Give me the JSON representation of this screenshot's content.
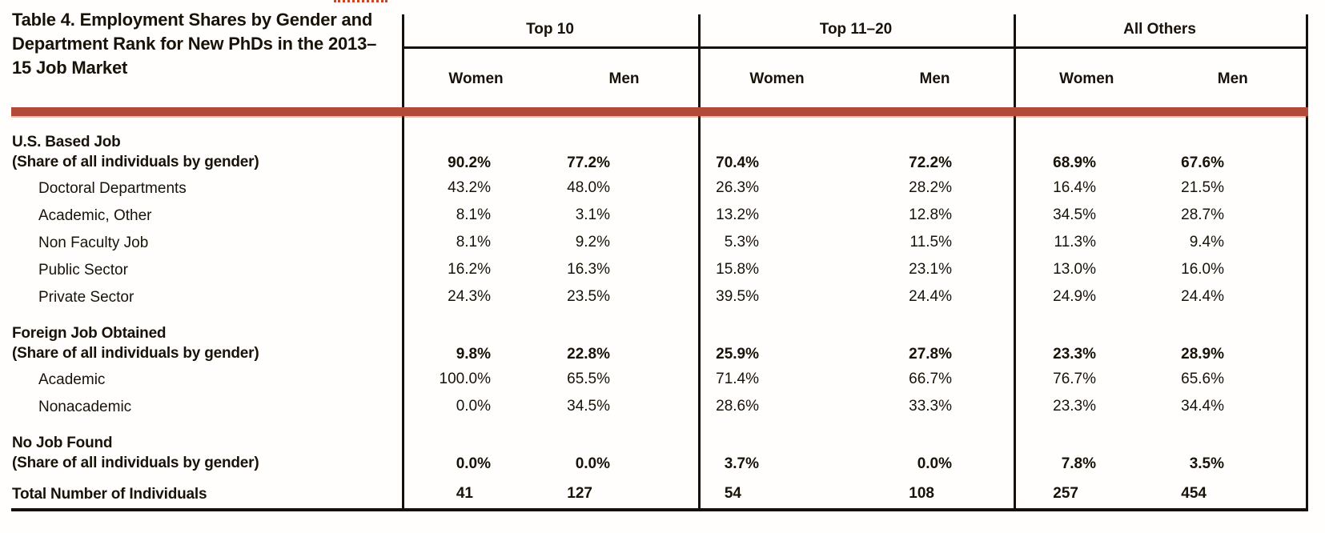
{
  "title": "Table 4. Employment Shares by Gender and Department Rank for New PhDs in the 2013–15 Job Market",
  "colors": {
    "accent_bar": "#b24a38",
    "dotted_rule": "#c5472b",
    "ink": "#15100b"
  },
  "table": {
    "groups": [
      {
        "label": "Top 10",
        "sub": [
          "Women",
          "Men"
        ]
      },
      {
        "label": "Top 11–20",
        "sub": [
          "Women",
          "Men"
        ]
      },
      {
        "label": "All Others",
        "sub": [
          "Women",
          "Men"
        ]
      }
    ],
    "rows": [
      {
        "label": "U.S. Based Job",
        "sublabel": "(Share of all individuals by gender)",
        "style": "group2",
        "bold_values": true,
        "values": [
          "90.2%",
          "77.2%",
          "70.4%",
          "72.2%",
          "68.9%",
          "67.6%"
        ]
      },
      {
        "label": "Doctoral Departments",
        "style": "single",
        "bold_values": false,
        "values": [
          "43.2%",
          "48.0%",
          "26.3%",
          "28.2%",
          "16.4%",
          "21.5%"
        ]
      },
      {
        "label": "Academic, Other",
        "style": "single",
        "bold_values": false,
        "values": [
          "8.1%",
          "3.1%",
          "13.2%",
          "12.8%",
          "34.5%",
          "28.7%"
        ]
      },
      {
        "label": "Non Faculty Job",
        "style": "single",
        "bold_values": false,
        "values": [
          "8.1%",
          "9.2%",
          "5.3%",
          "11.5%",
          "11.3%",
          "9.4%"
        ]
      },
      {
        "label": "Public Sector",
        "style": "single",
        "bold_values": false,
        "values": [
          "16.2%",
          "16.3%",
          "15.8%",
          "23.1%",
          "13.0%",
          "16.0%"
        ]
      },
      {
        "label": "Private Sector",
        "style": "single",
        "bold_values": false,
        "values": [
          "24.3%",
          "23.5%",
          "39.5%",
          "24.4%",
          "24.9%",
          "24.4%"
        ]
      },
      {
        "label": "Foreign Job Obtained",
        "sublabel": "(Share of all individuals by gender)",
        "style": "group2",
        "bold_values": true,
        "values": [
          "9.8%",
          "22.8%",
          "25.9%",
          "27.8%",
          "23.3%",
          "28.9%"
        ]
      },
      {
        "label": "Academic",
        "style": "single",
        "bold_values": false,
        "values": [
          "100.0%",
          "65.5%",
          "71.4%",
          "66.7%",
          "76.7%",
          "65.6%"
        ]
      },
      {
        "label": "Nonacademic",
        "style": "single",
        "bold_values": false,
        "values": [
          "0.0%",
          "34.5%",
          "28.6%",
          "33.3%",
          "23.3%",
          "34.4%"
        ]
      },
      {
        "label": "No Job Found",
        "sublabel": "(Share of all individuals by gender)",
        "style": "group2",
        "bold_values": true,
        "values": [
          "0.0%",
          "0.0%",
          "3.7%",
          "0.0%",
          "7.8%",
          "3.5%"
        ]
      },
      {
        "label": "Total Number of Individuals",
        "style": "total",
        "bold_values": true,
        "values": [
          "41",
          "127",
          "54",
          "108",
          "257",
          "454"
        ]
      }
    ]
  }
}
